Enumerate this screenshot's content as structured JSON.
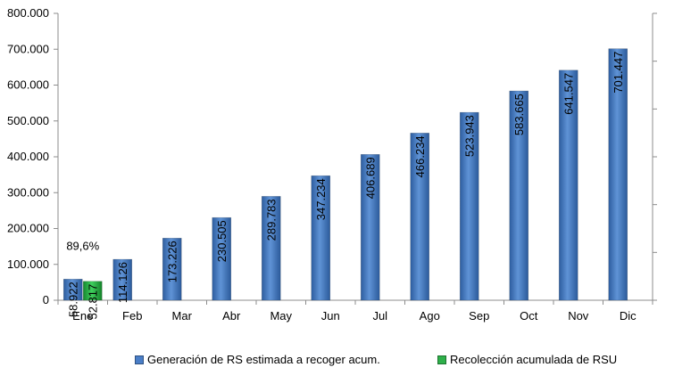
{
  "chart_data": {
    "type": "bar",
    "categories": [
      "Ene",
      "Feb",
      "Mar",
      "Abr",
      "May",
      "Jun",
      "Jul",
      "Ago",
      "Sep",
      "Oct",
      "Nov",
      "Dic"
    ],
    "series": [
      {
        "name": "Generación de RS estimada a recoger acum.",
        "color": "#4a7ec7",
        "values": [
          58922,
          114126,
          173226,
          230505,
          289783,
          347234,
          406689,
          466234,
          523943,
          583665,
          641547,
          701447
        ],
        "labels": [
          "58.922",
          "114.126",
          "173.226",
          "230.505",
          "289.783",
          "347.234",
          "406.689",
          "466.234",
          "523.943",
          "583.665",
          "641.547",
          "701.447"
        ]
      },
      {
        "name": "Recolección acumulada de RSU",
        "color": "#2eb04a",
        "values": [
          52817,
          null,
          null,
          null,
          null,
          null,
          null,
          null,
          null,
          null,
          null,
          null
        ],
        "labels": [
          "52.817",
          "",
          "",
          "",
          "",
          "",
          "",
          "",
          "",
          "",
          "",
          ""
        ]
      }
    ],
    "ylim": [
      0,
      800000
    ],
    "yticks": [
      0,
      100000,
      200000,
      300000,
      400000,
      500000,
      600000,
      700000,
      800000
    ],
    "ytick_labels": [
      "0",
      "100.000",
      "200.000",
      "300.000",
      "400.000",
      "500.000",
      "600.000",
      "700.000",
      "800.000"
    ],
    "annotation": "89,6%",
    "grid": false,
    "legend_position": "bottom"
  }
}
